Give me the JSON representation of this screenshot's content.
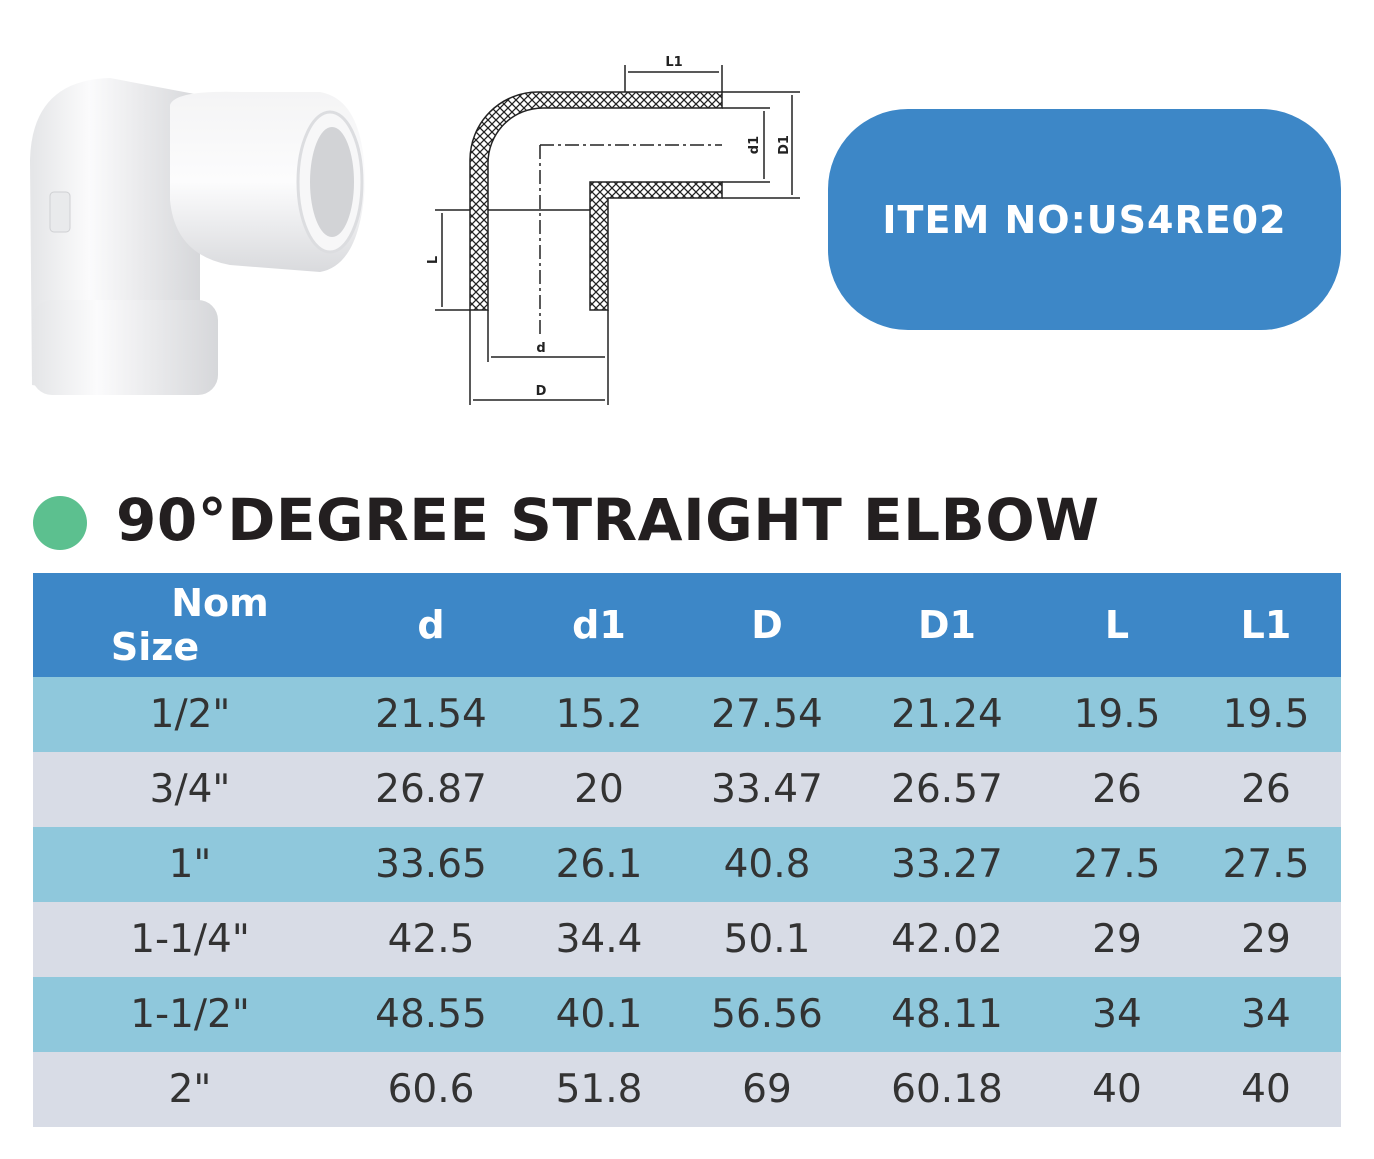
{
  "item_no": "ITEM NO:US4RE02",
  "title": "90°DEGREE STRAIGHT ELBOW",
  "diagram": {
    "labels": [
      "L1",
      "d1",
      "D1",
      "L",
      "d",
      "D"
    ]
  },
  "table": {
    "header": [
      [
        "Nom",
        "Size"
      ],
      "d",
      "d1",
      "D",
      "D1",
      "L",
      "L1"
    ],
    "rows": [
      [
        "1/2\"",
        21.54,
        15.2,
        27.54,
        21.24,
        19.5,
        19.5
      ],
      [
        "3/4\"",
        26.87,
        20,
        33.47,
        26.57,
        26,
        26
      ],
      [
        "1\"",
        33.65,
        26.1,
        40.8,
        33.27,
        27.5,
        27.5
      ],
      [
        "1-1/4\"",
        42.5,
        34.4,
        50.1,
        42.02,
        29,
        29
      ],
      [
        "1-1/2\"",
        48.55,
        40.1,
        56.56,
        48.11,
        34,
        34
      ],
      [
        "2\"",
        60.6,
        51.8,
        69,
        60.18,
        40,
        40
      ]
    ]
  }
}
